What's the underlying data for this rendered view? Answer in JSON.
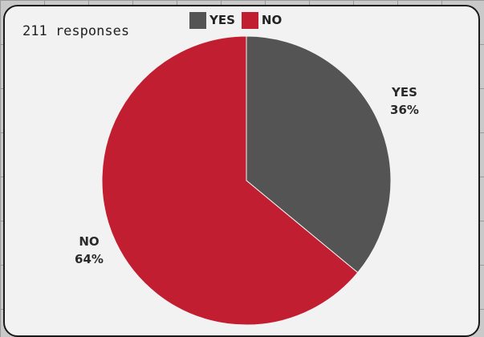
{
  "responses_text": "211 responses",
  "chart_data": {
    "type": "pie",
    "total_responses": 211,
    "series": [
      {
        "name": "YES",
        "value": 36,
        "label": "36%",
        "color": "#545454"
      },
      {
        "name": "NO",
        "value": 64,
        "label": "64%",
        "color": "#c21e32"
      }
    ],
    "legend": {
      "placement": "top-center",
      "entries": [
        "YES",
        "NO"
      ]
    }
  }
}
